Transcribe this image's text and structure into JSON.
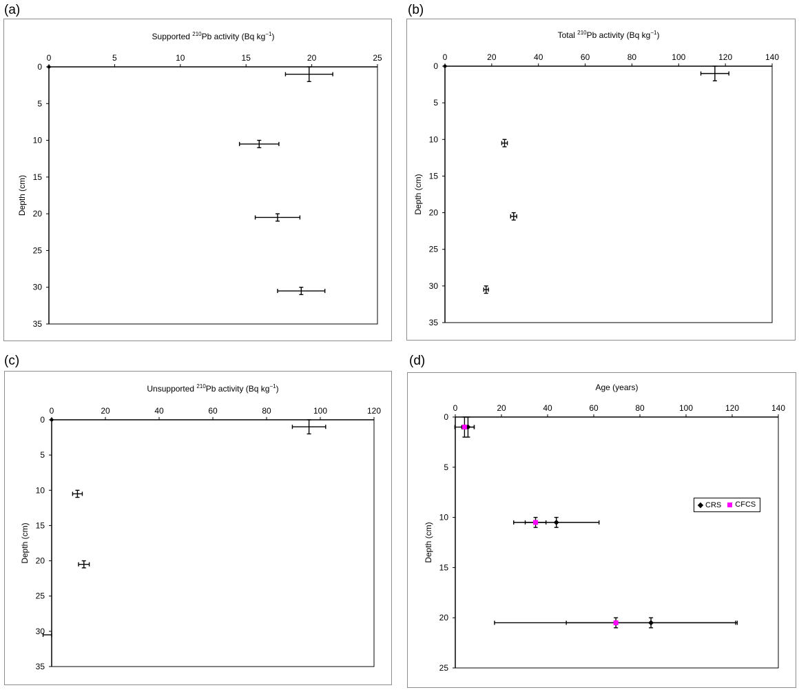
{
  "panels": [
    "(a)",
    "(b)",
    "(c)",
    "(d)"
  ],
  "colors": {
    "series_black": "#000000",
    "series_magenta": "#ff00ff",
    "frame": "#8c8c8c"
  },
  "chart_data": [
    {
      "id": "a",
      "type": "scatter",
      "title_pre": "Supported  ",
      "title_sup": "210",
      "title_post": "Pb activity (Bq kg",
      "title_sup2": "−1",
      "title_end": ")",
      "ylabel": "Depth (cm)",
      "xlim": [
        0,
        25
      ],
      "xticks": [
        0,
        5,
        10,
        15,
        20,
        25
      ],
      "ylim": [
        0,
        35
      ],
      "yticks": [
        0,
        5,
        10,
        15,
        20,
        25,
        30,
        35
      ],
      "y_inverted": true,
      "series": [
        {
          "marker": "none",
          "points": [
            {
              "x": 0,
              "y": 0,
              "xerr": 0,
              "yerr": 0
            },
            {
              "x": 19.8,
              "y": 1,
              "xerr": 1.8,
              "yerr": 1
            },
            {
              "x": 16.0,
              "y": 10.5,
              "xerr": 1.5,
              "yerr": 0.5
            },
            {
              "x": 17.4,
              "y": 20.5,
              "xerr": 1.7,
              "yerr": 0.5
            },
            {
              "x": 19.2,
              "y": 30.5,
              "xerr": 1.8,
              "yerr": 0.5
            }
          ]
        }
      ]
    },
    {
      "id": "b",
      "type": "scatter",
      "title_pre": "Total  ",
      "title_sup": "210",
      "title_post": "Pb activity (Bq kg",
      "title_sup2": "−1",
      "title_end": ")",
      "ylabel": "Depth (cm)",
      "xlim": [
        0,
        140
      ],
      "xticks": [
        0,
        20,
        40,
        60,
        80,
        100,
        120,
        140
      ],
      "ylim": [
        0,
        35
      ],
      "yticks": [
        0,
        5,
        10,
        15,
        20,
        25,
        30,
        35
      ],
      "y_inverted": true,
      "series": [
        {
          "marker": "none",
          "points": [
            {
              "x": 0,
              "y": 0,
              "xerr": 0,
              "yerr": 0
            },
            {
              "x": 115.5,
              "y": 1,
              "xerr": 6,
              "yerr": 1
            },
            {
              "x": 25.5,
              "y": 10.5,
              "xerr": 1.2,
              "yerr": 0.5
            },
            {
              "x": 29.4,
              "y": 20.5,
              "xerr": 1.3,
              "yerr": 0.5
            },
            {
              "x": 17.6,
              "y": 30.5,
              "xerr": 1.0,
              "yerr": 0.5
            }
          ]
        }
      ]
    },
    {
      "id": "c",
      "type": "scatter",
      "title_pre": "Unsupported  ",
      "title_sup": "210",
      "title_post": "Pb activity (Bq kg",
      "title_sup2": "−1",
      "title_end": ")",
      "ylabel": "Depth (cm)",
      "xlim": [
        0,
        120
      ],
      "xticks": [
        0,
        20,
        40,
        60,
        80,
        100,
        120
      ],
      "ylim": [
        0,
        35
      ],
      "yticks": [
        0,
        5,
        10,
        15,
        20,
        25,
        30,
        35
      ],
      "y_inverted": true,
      "series": [
        {
          "marker": "none",
          "points": [
            {
              "x": 0,
              "y": 0,
              "xerr": 0,
              "yerr": 0
            },
            {
              "x": 95.8,
              "y": 1,
              "xerr": 6.2,
              "yerr": 1
            },
            {
              "x": 9.6,
              "y": 10.5,
              "xerr": 1.8,
              "yerr": 0.5
            },
            {
              "x": 12.0,
              "y": 20.5,
              "xerr": 2.0,
              "yerr": 0.5
            },
            {
              "x": -1.6,
              "y": 30.5,
              "xerr": 1.6,
              "yerr": 0
            }
          ]
        }
      ]
    },
    {
      "id": "d",
      "type": "scatter",
      "title_pre": "Age (years)",
      "title_sup": "",
      "title_post": "",
      "title_sup2": "",
      "title_end": "",
      "ylabel": "Depth (cm)",
      "xlim": [
        0,
        140
      ],
      "xticks": [
        0,
        20,
        40,
        60,
        80,
        100,
        120,
        140
      ],
      "ylim": [
        0,
        25
      ],
      "yticks": [
        0,
        5,
        10,
        15,
        20,
        25
      ],
      "y_inverted": true,
      "legend": {
        "position": "right",
        "entries": [
          "CRS",
          "CFCS"
        ]
      },
      "series": [
        {
          "name": "CRS",
          "marker": "diamond",
          "color": "#000000",
          "points": [
            {
              "x": 5.5,
              "y": 1,
              "xerr": 2.7,
              "yerr": 1
            },
            {
              "x": 43.8,
              "y": 10.5,
              "xerr": 18.5,
              "yerr": 0.5
            },
            {
              "x": 84.8,
              "y": 20.5,
              "xerr": 36.7,
              "yerr": 0.5
            }
          ]
        },
        {
          "name": "CFCS",
          "marker": "square",
          "color": "#ff00ff",
          "points": [
            {
              "x": 4.0,
              "y": 1,
              "xerr": 4.2,
              "yerr": 1
            },
            {
              "x": 34.8,
              "y": 10.5,
              "xerr": 4.5,
              "yerr": 0.5
            },
            {
              "x": 69.6,
              "y": 20.5,
              "xerr": 52.6,
              "yerr": 0.5
            }
          ]
        }
      ]
    }
  ]
}
